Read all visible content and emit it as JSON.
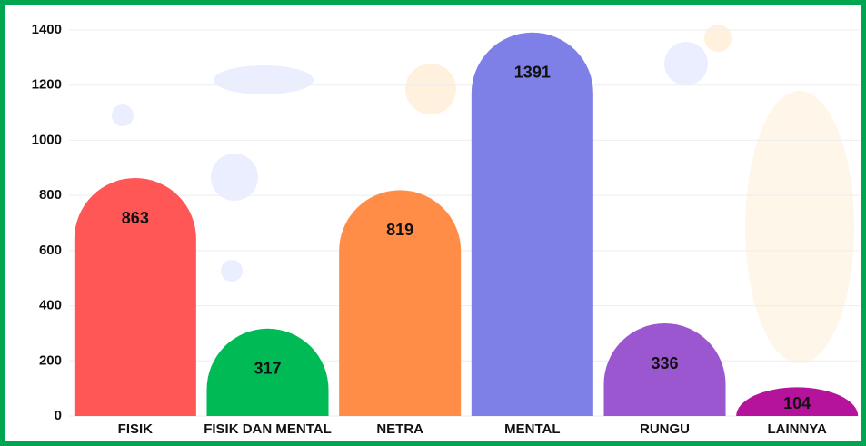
{
  "chart_data": {
    "type": "bar",
    "categories": [
      "FISIK",
      "FISIK DAN MENTAL",
      "NETRA",
      "MENTAL",
      "RUNGU",
      "LAINNYA"
    ],
    "values": [
      863,
      317,
      819,
      1391,
      336,
      104
    ],
    "colors": [
      "#ff5656",
      "#00bb55",
      "#ff8d47",
      "#7e80e8",
      "#9b57cf",
      "#b5139b"
    ],
    "ylim": [
      0,
      1400
    ],
    "yticks": [
      0,
      200,
      400,
      600,
      800,
      1000,
      1200,
      1400
    ],
    "grid": true
  }
}
